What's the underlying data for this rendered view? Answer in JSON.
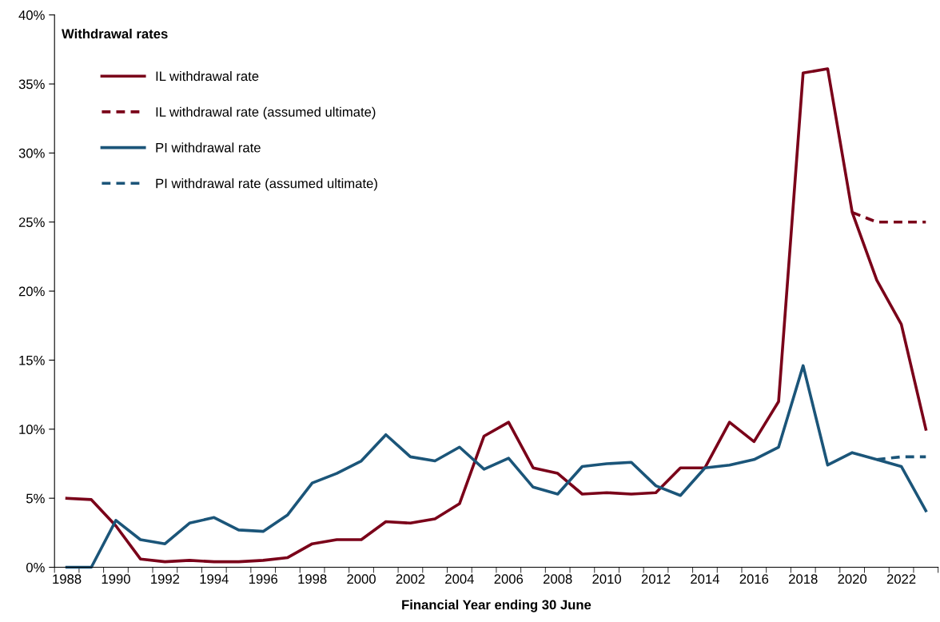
{
  "chart_data": {
    "type": "line",
    "title": "Withdrawal rates",
    "xlabel": "Financial Year ending 30 June",
    "categories": [
      "1988",
      null,
      "1990",
      null,
      "1992",
      null,
      "1994",
      null,
      "1996",
      null,
      "1998",
      null,
      "2000",
      null,
      "2002",
      null,
      "2004",
      null,
      "2006",
      null,
      "2008",
      null,
      "2010",
      null,
      "2012",
      null,
      "2014",
      null,
      "2016",
      null,
      "2018",
      null,
      "2020",
      null,
      "2022",
      null
    ],
    "series": [
      {
        "name": "IL withdrawal rate",
        "color": "#7a0019",
        "line_style": "solid",
        "values": [
          5.0,
          4.9,
          3.0,
          0.6,
          0.4,
          0.5,
          0.4,
          0.4,
          0.5,
          0.7,
          1.7,
          2.0,
          2.0,
          3.3,
          3.2,
          3.5,
          4.6,
          9.5,
          10.5,
          7.2,
          6.8,
          5.3,
          5.4,
          5.3,
          5.4,
          7.2,
          7.2,
          10.5,
          9.1,
          12.0,
          35.8,
          36.1,
          25.7,
          20.8,
          17.6,
          10.0
        ]
      },
      {
        "name": "IL withdrawal rate (assumed ultimate)",
        "color": "#7a0019",
        "line_style": "dashed",
        "values": [
          null,
          null,
          null,
          null,
          null,
          null,
          null,
          null,
          null,
          null,
          null,
          null,
          null,
          null,
          null,
          null,
          null,
          null,
          null,
          null,
          null,
          null,
          null,
          null,
          null,
          null,
          null,
          null,
          null,
          null,
          null,
          null,
          25.7,
          25.0,
          25.0,
          25.0
        ]
      },
      {
        "name": "PI withdrawal rate",
        "color": "#1b5579",
        "line_style": "solid",
        "values": [
          0,
          0,
          3.4,
          2.0,
          1.7,
          3.2,
          3.6,
          2.7,
          2.6,
          3.8,
          6.1,
          6.8,
          7.7,
          9.6,
          8.0,
          7.7,
          8.7,
          7.1,
          7.9,
          5.8,
          5.3,
          7.3,
          7.5,
          7.6,
          5.9,
          5.2,
          7.2,
          7.4,
          7.8,
          8.7,
          14.6,
          7.4,
          8.3,
          7.8,
          7.3,
          4.1
        ]
      },
      {
        "name": "PI withdrawal rate (assumed ultimate)",
        "color": "#1b5579",
        "line_style": "dashed",
        "values": [
          null,
          null,
          null,
          null,
          null,
          null,
          null,
          null,
          null,
          null,
          null,
          null,
          null,
          null,
          null,
          null,
          null,
          null,
          null,
          null,
          null,
          null,
          null,
          null,
          null,
          null,
          null,
          null,
          null,
          null,
          null,
          null,
          null,
          7.8,
          8.0,
          8.0
        ]
      }
    ],
    "ylim": [
      0,
      40
    ],
    "yticks": [
      {
        "value": 0,
        "label": "0%"
      },
      {
        "value": 5,
        "label": "5%"
      },
      {
        "value": 10,
        "label": "10%"
      },
      {
        "value": 15,
        "label": "15%"
      },
      {
        "value": 20,
        "label": "20%"
      },
      {
        "value": 25,
        "label": "25%"
      },
      {
        "value": 30,
        "label": "30%"
      },
      {
        "value": 35,
        "label": "35%"
      },
      {
        "value": 40,
        "label": "40%"
      }
    ],
    "grid": false,
    "legend": "top left",
    "marker": "none"
  }
}
